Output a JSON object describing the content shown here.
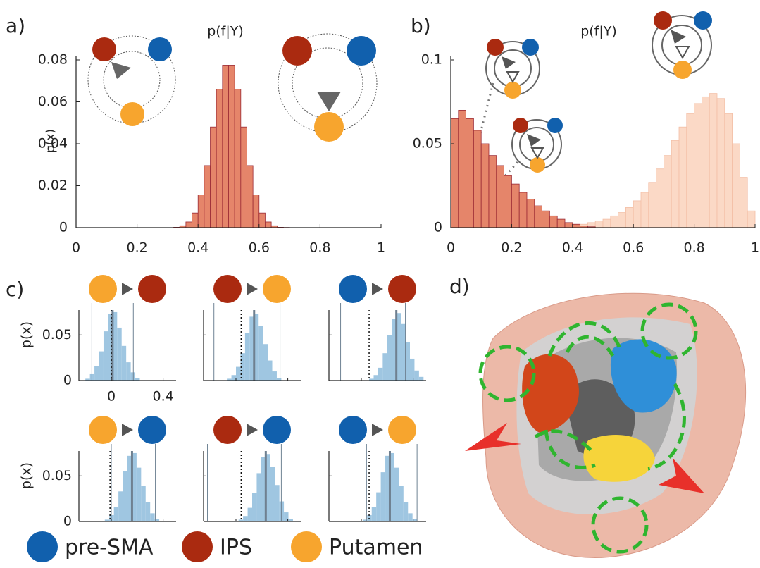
{
  "chart_data": [
    {
      "type": "histogram",
      "label": "a)",
      "title": "p(f|Y)",
      "y_label": "p(x)",
      "bins": [
        0.32,
        0.34,
        0.36,
        0.38,
        0.4,
        0.42,
        0.44,
        0.46,
        0.48,
        0.5,
        0.52,
        0.54,
        0.56,
        0.58,
        0.6,
        0.62,
        0.64,
        0.66,
        0.68,
        0.7
      ],
      "series": [
        {
          "color": "#e5856a",
          "edge": "#9b2a35",
          "values": [
            0.0002,
            0.0009,
            0.0027,
            0.007,
            0.0156,
            0.0296,
            0.048,
            0.066,
            0.0775,
            0.0775,
            0.066,
            0.048,
            0.0296,
            0.0156,
            0.007,
            0.0027,
            0.0009,
            0.0002,
            0.0001
          ]
        }
      ],
      "xlim": [
        0,
        1
      ],
      "xticks": [
        0,
        0.2,
        0.4,
        0.6,
        0.8,
        1
      ],
      "ylim": [
        0,
        0.08
      ],
      "yticks": [
        0,
        0.02,
        0.04,
        0.06,
        0.08
      ]
    },
    {
      "type": "histogram",
      "label": "b)",
      "title": "p(f|Y)",
      "bins": [
        0,
        0.025,
        0.05,
        0.075,
        0.1,
        0.125,
        0.15,
        0.175,
        0.2,
        0.225,
        0.25,
        0.275,
        0.3,
        0.325,
        0.35,
        0.375,
        0.4,
        0.425,
        0.45,
        0.475,
        0.5,
        0.525,
        0.55,
        0.575,
        0.6,
        0.625,
        0.65,
        0.675,
        0.7,
        0.725,
        0.75,
        0.775,
        0.8,
        0.825,
        0.85,
        0.875,
        0.9,
        0.925,
        0.95,
        0.975,
        1
      ],
      "series": [
        {
          "color": "#fbd9c6",
          "edge": "#f3bfa6",
          "values": [
            0,
            0,
            0,
            0,
            0,
            0,
            0,
            0,
            0,
            0,
            0,
            0,
            0,
            0,
            0,
            0,
            0.001,
            0.002,
            0.003,
            0.004,
            0.005,
            0.007,
            0.009,
            0.012,
            0.016,
            0.021,
            0.027,
            0.035,
            0.043,
            0.052,
            0.06,
            0.068,
            0.074,
            0.078,
            0.08,
            0.077,
            0.068,
            0.05,
            0.03,
            0.01
          ]
        },
        {
          "color": "#e5856a",
          "edge": "#9b2a35",
          "values": [
            0.065,
            0.07,
            0.065,
            0.058,
            0.05,
            0.043,
            0.037,
            0.031,
            0.026,
            0.021,
            0.017,
            0.013,
            0.01,
            0.007,
            0.005,
            0.003,
            0.002,
            0.001,
            0.0005,
            0,
            0,
            0,
            0,
            0,
            0,
            0,
            0,
            0,
            0,
            0,
            0,
            0,
            0,
            0,
            0,
            0,
            0,
            0,
            0,
            0
          ]
        }
      ],
      "xlim": [
        0,
        1
      ],
      "xticks": [
        0,
        0.2,
        0.4,
        0.6,
        0.8,
        1
      ],
      "ylim": [
        0,
        0.1
      ],
      "yticks": [
        0,
        0.05,
        0.1
      ]
    },
    {
      "type": "small_multiples",
      "label": "c)",
      "y_label": "p(x)",
      "color": "#9fc6e1",
      "xlim": [
        -0.25,
        0.5
      ],
      "xticks": [
        0,
        0.4
      ],
      "ylim": [
        0,
        0.085
      ],
      "yticks": [
        0,
        0.05
      ],
      "panels": [
        {
          "from": 2,
          "to": 1,
          "bins": [
            -0.2,
            -0.165,
            -0.13,
            -0.095,
            -0.06,
            -0.025,
            0.01,
            0.045,
            0.08,
            0.115,
            0.15,
            0.185,
            0.22
          ],
          "values": [
            0.002,
            0.007,
            0.016,
            0.032,
            0.054,
            0.073,
            0.075,
            0.058,
            0.038,
            0.02,
            0.009,
            0.003
          ],
          "interval": [
            -0.15,
            0.17
          ],
          "median": 0.01,
          "reference": 0
        },
        {
          "from": 1,
          "to": 2,
          "bins": [
            -0.07,
            -0.035,
            0,
            0.035,
            0.07,
            0.105,
            0.14,
            0.175,
            0.21,
            0.245,
            0.28,
            0.315,
            0.35
          ],
          "values": [
            0.002,
            0.006,
            0.015,
            0.03,
            0.052,
            0.07,
            0.073,
            0.06,
            0.04,
            0.022,
            0.01,
            0.003
          ],
          "interval": [
            -0.17,
            0.34
          ],
          "median": 0.14,
          "reference": 0.04
        },
        {
          "from": 0,
          "to": 1,
          "bins": [
            0.06,
            0.095,
            0.13,
            0.165,
            0.2,
            0.235,
            0.27,
            0.305,
            0.34,
            0.375,
            0.41,
            0.445,
            0.48
          ],
          "values": [
            0.002,
            0.006,
            0.014,
            0.03,
            0.05,
            0.068,
            0.074,
            0.062,
            0.042,
            0.024,
            0.011,
            0.004
          ],
          "interval": [
            -0.16,
            0.34
          ],
          "median": 0.27,
          "reference": 0.06
        },
        {
          "from": 2,
          "to": 0,
          "bins": [
            -0.05,
            -0.015,
            0.02,
            0.055,
            0.09,
            0.125,
            0.16,
            0.195,
            0.23,
            0.265,
            0.3,
            0.335,
            0.37
          ],
          "values": [
            0.002,
            0.007,
            0.016,
            0.033,
            0.055,
            0.072,
            0.075,
            0.059,
            0.039,
            0.021,
            0.009,
            0.003
          ],
          "interval": [
            0,
            0.34
          ],
          "median": 0.16,
          "reference": -0.01
        },
        {
          "from": 1,
          "to": 0,
          "bins": [
            0.02,
            0.055,
            0.09,
            0.125,
            0.16,
            0.195,
            0.23,
            0.265,
            0.3,
            0.335,
            0.37,
            0.405,
            0.44
          ],
          "values": [
            0.002,
            0.006,
            0.015,
            0.031,
            0.053,
            0.071,
            0.074,
            0.06,
            0.04,
            0.022,
            0.01,
            0.003
          ],
          "interval": [
            -0.22,
            0.35
          ],
          "median": 0.23,
          "reference": 0.04
        },
        {
          "from": 0,
          "to": 2,
          "bins": [
            0.01,
            0.045,
            0.08,
            0.115,
            0.15,
            0.185,
            0.22,
            0.255,
            0.29,
            0.325,
            0.36,
            0.395,
            0.43
          ],
          "values": [
            0.002,
            0.007,
            0.016,
            0.032,
            0.054,
            0.072,
            0.075,
            0.059,
            0.039,
            0.021,
            0.009,
            0.003
          ],
          "interval": [
            0.04,
            0.43
          ],
          "median": 0.22,
          "reference": 0.06
        }
      ]
    }
  ],
  "legend": [
    {
      "name": "pre-SMA",
      "color": "#1160ad"
    },
    {
      "name": "IPS",
      "color": "#aa2a10"
    },
    {
      "name": "Putamen",
      "color": "#f7a52e"
    }
  ],
  "panel_d": {
    "label": "d)"
  }
}
